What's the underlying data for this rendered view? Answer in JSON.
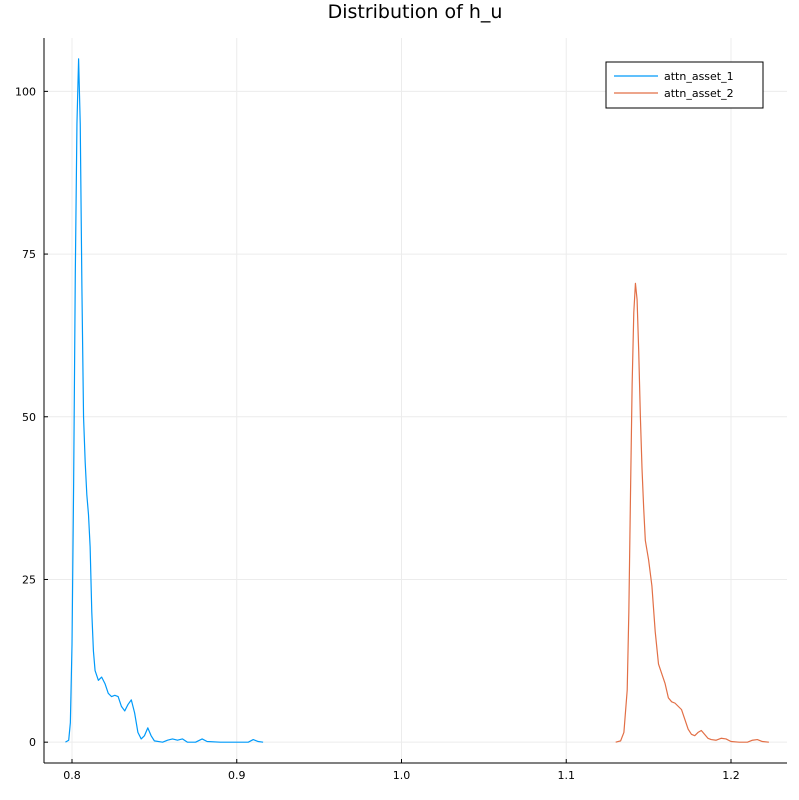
{
  "chart_data": {
    "type": "line",
    "title": "Distribution of h_u",
    "xlabel": "",
    "ylabel": "",
    "xlim": [
      0.783,
      1.234
    ],
    "ylim": [
      -3.2,
      108.2
    ],
    "x_ticks": [
      0.8,
      0.9,
      1.0,
      1.1,
      1.2
    ],
    "x_tick_labels": [
      "0.8",
      "0.9",
      "1.0",
      "1.1",
      "1.2"
    ],
    "y_ticks": [
      0,
      25,
      50,
      75,
      100
    ],
    "y_tick_labels": [
      "0",
      "25",
      "50",
      "75",
      "100"
    ],
    "grid": true,
    "legend_position": "top-right",
    "series": [
      {
        "name": "attn_asset_1",
        "color": "#009AFA",
        "points": [
          [
            0.796,
            0.0
          ],
          [
            0.798,
            0.3
          ],
          [
            0.799,
            3.0
          ],
          [
            0.8,
            15.0
          ],
          [
            0.801,
            40.0
          ],
          [
            0.802,
            72.0
          ],
          [
            0.803,
            95.0
          ],
          [
            0.804,
            105.0
          ],
          [
            0.805,
            95.0
          ],
          [
            0.806,
            70.0
          ],
          [
            0.807,
            50.0
          ],
          [
            0.808,
            43.0
          ],
          [
            0.809,
            38.0
          ],
          [
            0.81,
            35.0
          ],
          [
            0.811,
            30.0
          ],
          [
            0.812,
            20.0
          ],
          [
            0.813,
            14.0
          ],
          [
            0.814,
            11.0
          ],
          [
            0.816,
            9.5
          ],
          [
            0.818,
            10.0
          ],
          [
            0.82,
            9.0
          ],
          [
            0.822,
            7.5
          ],
          [
            0.824,
            7.0
          ],
          [
            0.826,
            7.2
          ],
          [
            0.828,
            7.0
          ],
          [
            0.83,
            5.5
          ],
          [
            0.832,
            4.8
          ],
          [
            0.834,
            5.8
          ],
          [
            0.836,
            6.5
          ],
          [
            0.838,
            4.5
          ],
          [
            0.84,
            1.5
          ],
          [
            0.842,
            0.5
          ],
          [
            0.844,
            1.0
          ],
          [
            0.846,
            2.2
          ],
          [
            0.848,
            1.0
          ],
          [
            0.85,
            0.2
          ],
          [
            0.855,
            0.0
          ],
          [
            0.858,
            0.3
          ],
          [
            0.861,
            0.5
          ],
          [
            0.864,
            0.3
          ],
          [
            0.867,
            0.5
          ],
          [
            0.87,
            0.0
          ],
          [
            0.875,
            0.0
          ],
          [
            0.879,
            0.5
          ],
          [
            0.882,
            0.1
          ],
          [
            0.89,
            0.0
          ],
          [
            0.9,
            0.0
          ],
          [
            0.907,
            0.0
          ],
          [
            0.91,
            0.4
          ],
          [
            0.913,
            0.1
          ],
          [
            0.916,
            0.0
          ]
        ]
      },
      {
        "name": "attn_asset_2",
        "color": "#E26F46",
        "points": [
          [
            1.13,
            0.0
          ],
          [
            1.133,
            0.2
          ],
          [
            1.135,
            1.5
          ],
          [
            1.137,
            8.0
          ],
          [
            1.138,
            20.0
          ],
          [
            1.139,
            38.0
          ],
          [
            1.14,
            55.0
          ],
          [
            1.141,
            66.0
          ],
          [
            1.142,
            70.5
          ],
          [
            1.143,
            68.0
          ],
          [
            1.144,
            60.0
          ],
          [
            1.145,
            50.0
          ],
          [
            1.146,
            42.0
          ],
          [
            1.147,
            36.0
          ],
          [
            1.148,
            31.0
          ],
          [
            1.15,
            28.0
          ],
          [
            1.152,
            24.0
          ],
          [
            1.154,
            17.0
          ],
          [
            1.156,
            12.0
          ],
          [
            1.158,
            10.5
          ],
          [
            1.16,
            9.0
          ],
          [
            1.162,
            6.8
          ],
          [
            1.164,
            6.2
          ],
          [
            1.166,
            6.0
          ],
          [
            1.168,
            5.5
          ],
          [
            1.17,
            5.0
          ],
          [
            1.172,
            3.5
          ],
          [
            1.174,
            2.0
          ],
          [
            1.176,
            1.2
          ],
          [
            1.178,
            1.0
          ],
          [
            1.18,
            1.5
          ],
          [
            1.182,
            1.8
          ],
          [
            1.184,
            1.2
          ],
          [
            1.186,
            0.6
          ],
          [
            1.188,
            0.4
          ],
          [
            1.191,
            0.3
          ],
          [
            1.194,
            0.6
          ],
          [
            1.197,
            0.5
          ],
          [
            1.2,
            0.1
          ],
          [
            1.205,
            0.0
          ],
          [
            1.21,
            0.0
          ],
          [
            1.213,
            0.3
          ],
          [
            1.216,
            0.4
          ],
          [
            1.219,
            0.1
          ],
          [
            1.223,
            0.0
          ]
        ]
      }
    ]
  }
}
